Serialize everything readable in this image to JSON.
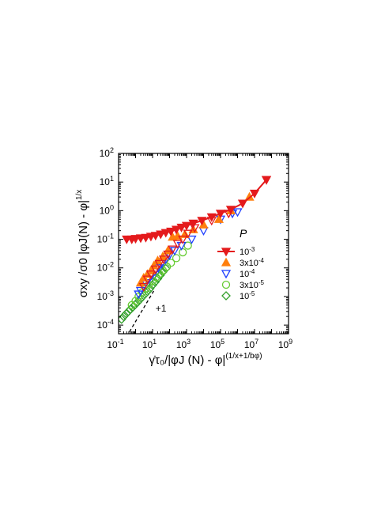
{
  "chart_data": {
    "type": "scatter",
    "xscale": "log",
    "yscale": "log",
    "xlim": [
      0.1,
      1000000000
    ],
    "ylim": [
      5e-05,
      100
    ],
    "grid": false,
    "legend_position": "right",
    "x_ticks": [
      {
        "value": 0.1,
        "base": "10",
        "exp": "-1"
      },
      {
        "value": 10,
        "base": "10",
        "exp": "1"
      },
      {
        "value": 1000,
        "base": "10",
        "exp": "3"
      },
      {
        "value": 100000,
        "base": "10",
        "exp": "5"
      },
      {
        "value": 10000000,
        "base": "10",
        "exp": "7"
      },
      {
        "value": 1000000000,
        "base": "10",
        "exp": "9"
      }
    ],
    "y_ticks": [
      {
        "value": 0.0001,
        "base": "10",
        "exp": "-4"
      },
      {
        "value": 0.001,
        "base": "10",
        "exp": "-3"
      },
      {
        "value": 0.01,
        "base": "10",
        "exp": "-2"
      },
      {
        "value": 0.1,
        "base": "10",
        "exp": "-1"
      },
      {
        "value": 1,
        "base": "10",
        "exp": "0"
      },
      {
        "value": 10,
        "base": "10",
        "exp": "1"
      },
      {
        "value": 100,
        "base": "10",
        "exp": "2"
      }
    ],
    "xlabel": {
      "main": "γ̇τ₀/|φJ (N) - φ|",
      "exponent": "(1/x+1/bφ)"
    },
    "ylabel": {
      "main": "σxy /σ0 |φJ(N) - φ|",
      "exponent": "1/x"
    },
    "legend_title": "P",
    "annotation": {
      "text": "+1",
      "x": 15,
      "y": 0.0003
    },
    "slope_line": {
      "style": "dashed",
      "color": "#000000",
      "x": [
        0.3,
        12
      ],
      "y": [
        4e-05,
        0.0016
      ]
    },
    "series": [
      {
        "name": "10-3",
        "legend_base": "10",
        "legend_exp": "-3",
        "color": "#e41a1c",
        "marker": "triangle-down",
        "filled": true,
        "line": true,
        "x": [
          0.3,
          0.6,
          1,
          2,
          4,
          8,
          15,
          30,
          60,
          120,
          250,
          500,
          1000,
          2500,
          8000,
          30000,
          100000,
          400000,
          2000000,
          10000000,
          50000000
        ],
        "y": [
          0.1,
          0.1,
          0.105,
          0.11,
          0.115,
          0.125,
          0.135,
          0.15,
          0.17,
          0.19,
          0.22,
          0.26,
          0.3,
          0.36,
          0.45,
          0.6,
          0.8,
          1.1,
          1.8,
          4,
          12
        ]
      },
      {
        "name": "10-3-open",
        "color": "#e41a1c",
        "marker": "triangle-down",
        "filled": false,
        "line": false,
        "x": [
          3,
          5,
          8,
          15,
          25,
          45,
          80,
          150,
          300,
          600,
          1200,
          3000,
          30000,
          300000,
          50000000
        ],
        "y": [
          0.0022,
          0.004,
          0.006,
          0.009,
          0.014,
          0.02,
          0.03,
          0.045,
          0.07,
          0.1,
          0.16,
          0.25,
          0.45,
          0.8,
          12
        ]
      },
      {
        "name": "3x10-4",
        "legend_base": "3x10",
        "legend_exp": "-4",
        "color": "#ff7f0e",
        "marker": "triangle-up",
        "filled": true,
        "line": false,
        "x": [
          2,
          3,
          5,
          8,
          12,
          20,
          40,
          80,
          150,
          300,
          800,
          2500,
          10000,
          80000,
          400000,
          5000000
        ],
        "y": [
          0.003,
          0.0045,
          0.006,
          0.008,
          0.012,
          0.018,
          0.025,
          0.04,
          0.12,
          0.13,
          0.15,
          0.22,
          0.32,
          0.5,
          1.0,
          3
        ]
      },
      {
        "name": "10-4",
        "legend_base": "10",
        "legend_exp": "-4",
        "color": "#1f3fff",
        "marker": "triangle-down",
        "filled": false,
        "line": false,
        "x": [
          1.5,
          2,
          3,
          4,
          6,
          9,
          14,
          22,
          35,
          60,
          100,
          200,
          500,
          2000,
          10000,
          100000,
          500000,
          1000000
        ],
        "y": [
          0.0012,
          0.0016,
          0.0022,
          0.003,
          0.004,
          0.0055,
          0.0075,
          0.01,
          0.014,
          0.02,
          0.028,
          0.04,
          0.06,
          0.1,
          0.2,
          0.5,
          0.8,
          0.9
        ]
      },
      {
        "name": "3x10-5",
        "legend_base": "3x10",
        "legend_exp": "-5",
        "color": "#66cc33",
        "marker": "circle",
        "filled": false,
        "line": false,
        "x": [
          0.6,
          1,
          1.5,
          2.5,
          4,
          6,
          10,
          16,
          25,
          40,
          70,
          120,
          250,
          600,
          1200
        ],
        "y": [
          0.0005,
          0.0007,
          0.001,
          0.0014,
          0.0019,
          0.0026,
          0.0035,
          0.0047,
          0.0062,
          0.0082,
          0.011,
          0.015,
          0.022,
          0.035,
          0.06
        ]
      },
      {
        "name": "10-5",
        "legend_base": "10",
        "legend_exp": "-5",
        "color": "#33a02c",
        "marker": "diamond",
        "filled": false,
        "line": false,
        "x": [
          0.15,
          0.2,
          0.28,
          0.38,
          0.5,
          0.7,
          0.95,
          1.3,
          1.8,
          2.5,
          3.5,
          5,
          7,
          10,
          14,
          20,
          28,
          40,
          60
        ],
        "y": [
          0.00016,
          0.0002,
          0.00025,
          0.0003,
          0.00036,
          0.00043,
          0.00052,
          0.00063,
          0.00078,
          0.00097,
          0.0012,
          0.0015,
          0.0019,
          0.0025,
          0.0032,
          0.0042,
          0.0055,
          0.0072,
          0.0095
        ]
      }
    ]
  }
}
